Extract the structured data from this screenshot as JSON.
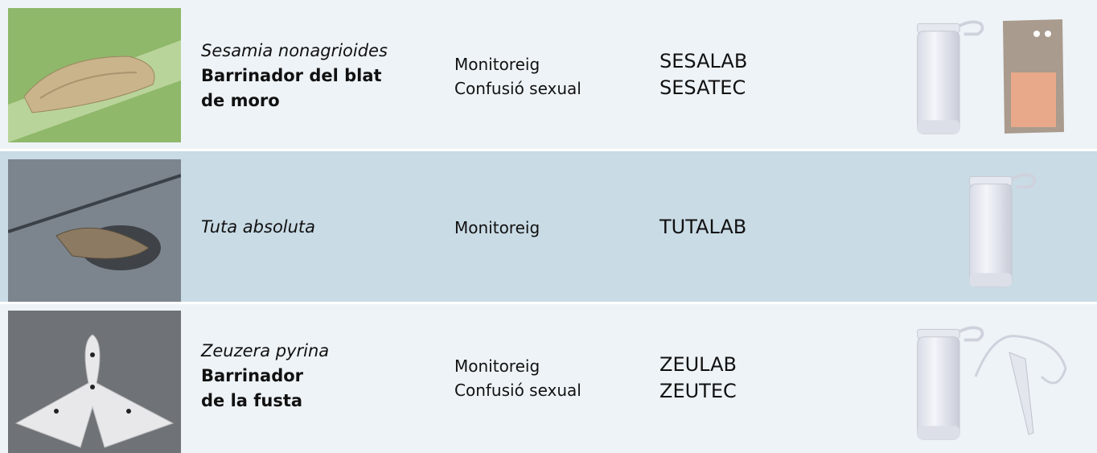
{
  "rows": [
    {
      "species": "Sesamia nonagrioides",
      "common_name": [
        "Barrinador del blat",
        "de moro"
      ],
      "uses": [
        "Monitoreig",
        "Confusió sexual"
      ],
      "products": [
        "SESALAB",
        "SESATEC"
      ]
    },
    {
      "species": "Tuta absoluta",
      "uses": [
        "Monitoreig"
      ],
      "products": [
        "TUTALAB"
      ]
    },
    {
      "species": "Zeuzera pyrina",
      "common_name": [
        "Barrinador",
        "de la fusta"
      ],
      "uses": [
        "Monitoreig",
        "Confusió sexual"
      ],
      "products": [
        "ZEULAB",
        "ZEUTEC"
      ]
    }
  ]
}
